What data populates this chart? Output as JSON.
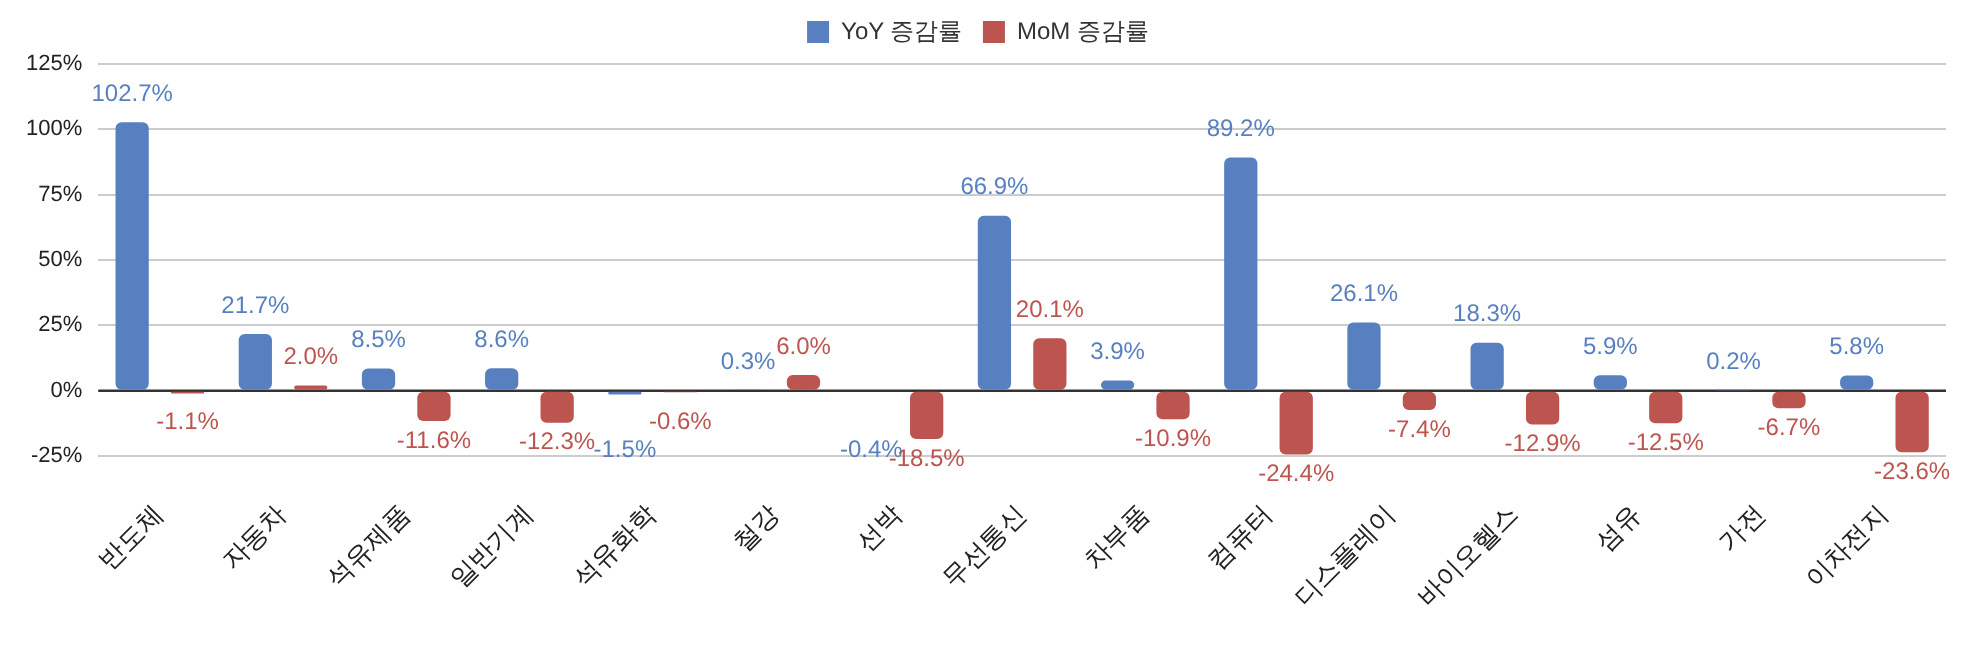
{
  "chart_data": {
    "type": "bar",
    "categories": [
      "반도체",
      "자동차",
      "석유제품",
      "일반기계",
      "석유화학",
      "철강",
      "선박",
      "무선통신",
      "차부품",
      "컴퓨터",
      "디스플레이",
      "바이오헬스",
      "섬유",
      "가전",
      "이차전지"
    ],
    "series": [
      {
        "name": "YoY 증감률",
        "color": "#5880c0",
        "values": [
          102.7,
          21.7,
          8.5,
          8.6,
          -1.5,
          0.3,
          -0.4,
          66.9,
          3.9,
          89.2,
          26.1,
          18.3,
          5.9,
          0.2,
          5.8
        ],
        "value_labels": [
          "102.7%",
          "21.7%",
          "8.5%",
          "8.6%",
          "-1.5%",
          "0.3%",
          "-0.4%",
          "66.9%",
          "3.9%",
          "89.2%",
          "26.1%",
          "18.3%",
          "5.9%",
          "0.2%",
          "5.8%"
        ]
      },
      {
        "name": "MoM 증감률",
        "color": "#bc544f",
        "values": [
          -1.1,
          2.0,
          -11.6,
          -12.3,
          -0.6,
          6.0,
          -18.5,
          20.1,
          -10.9,
          -24.4,
          -7.4,
          -12.9,
          -12.5,
          -6.7,
          -23.6
        ],
        "value_labels": [
          "-1.1%",
          "2.0%",
          "-11.6%",
          "-12.3%",
          "-0.6%",
          "6.0%",
          "-18.5%",
          "20.1%",
          "-10.9%",
          "-24.4%",
          "-7.4%",
          "-12.9%",
          "-12.5%",
          "-6.7%",
          "-23.6%"
        ]
      }
    ],
    "ylim": [
      -25,
      125
    ],
    "yticks": [
      {
        "value": -25,
        "label": "-25%"
      },
      {
        "value": 0,
        "label": "0%"
      },
      {
        "value": 25,
        "label": "25%"
      },
      {
        "value": 50,
        "label": "50%"
      },
      {
        "value": 75,
        "label": "75%"
      },
      {
        "value": 100,
        "label": "100%"
      },
      {
        "value": 125,
        "label": "125%"
      }
    ],
    "grid": "y",
    "legend": "top"
  }
}
